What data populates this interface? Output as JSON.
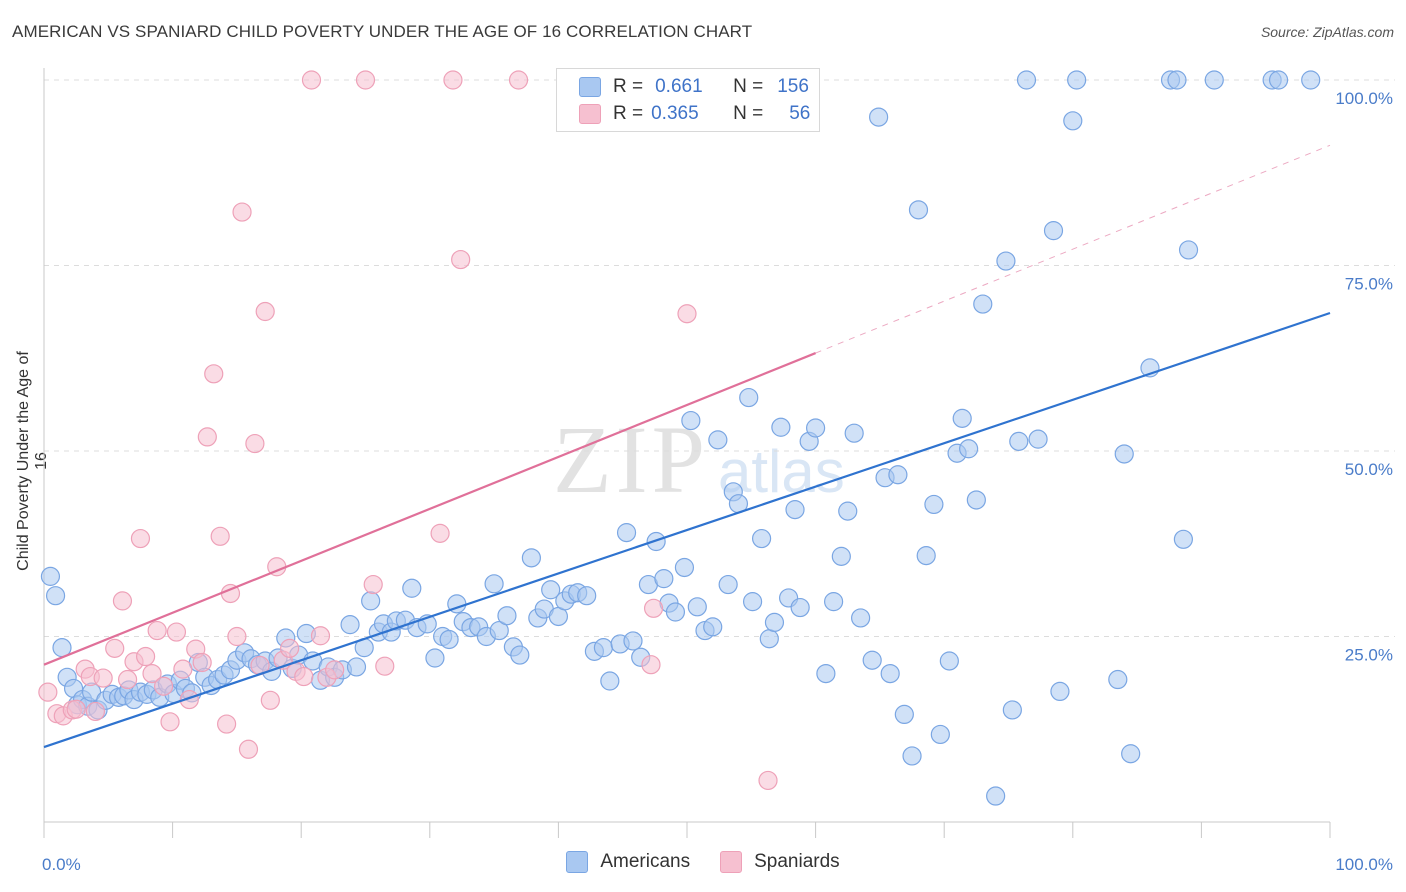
{
  "title": "AMERICAN VS SPANIARD CHILD POVERTY UNDER THE AGE OF 16 CORRELATION CHART",
  "source": "Source: ZipAtlas.com",
  "watermark": {
    "zip": "ZIP",
    "atlas": "atlas"
  },
  "colors": {
    "americans_fill": "#a9c8f1",
    "americans_stroke": "#7aa6e3",
    "americans_line": "#2f73cf",
    "spaniards_fill": "#f6c0d0",
    "spaniards_stroke": "#eea1b8",
    "spaniards_line": "#e07099",
    "tick_text": "#4a7cc9"
  },
  "legend": {
    "rows": [
      {
        "r_label": "R =",
        "r_value": "0.661",
        "n_label": "N =",
        "n_value": "156"
      },
      {
        "r_label": "R =",
        "r_value": "0.365",
        "n_label": "N =",
        "n_value": "56"
      }
    ]
  },
  "bottom_legend": [
    "Americans",
    "Spaniards"
  ],
  "chart_data": {
    "type": "scatter",
    "title": "AMERICAN VS SPANIARD CHILD POVERTY UNDER THE AGE OF 16 CORRELATION CHART",
    "xlabel": "",
    "ylabel": "Child Poverty Under the Age of 16",
    "xlim": [
      0,
      100
    ],
    "ylim": [
      0,
      100
    ],
    "x_tick_labels": [
      "0.0%",
      "100.0%"
    ],
    "y_ticks": [
      25,
      50,
      75,
      100
    ],
    "y_tick_labels": [
      "25.0%",
      "50.0%",
      "75.0%",
      "100.0%"
    ],
    "grid": "horizontal dashed",
    "legend_position": "top-center",
    "series": [
      {
        "name": "Americans",
        "R": 0.661,
        "N": 156,
        "trend": {
          "x": [
            0,
            100
          ],
          "y": [
            10.1,
            68.6
          ],
          "dashed_extension": false
        },
        "points": [
          [
            0.5,
            33.1
          ],
          [
            0.9,
            30.5
          ],
          [
            1.4,
            23.5
          ],
          [
            1.8,
            19.5
          ],
          [
            2.3,
            18.0
          ],
          [
            2.6,
            15.8
          ],
          [
            3.0,
            16.5
          ],
          [
            3.4,
            15.6
          ],
          [
            3.7,
            17.5
          ],
          [
            4.2,
            15.1
          ],
          [
            4.8,
            16.4
          ],
          [
            5.3,
            17.2
          ],
          [
            5.8,
            16.8
          ],
          [
            6.2,
            17.0
          ],
          [
            6.6,
            17.8
          ],
          [
            7.0,
            16.5
          ],
          [
            7.5,
            17.5
          ],
          [
            8.0,
            17.2
          ],
          [
            8.5,
            17.8
          ],
          [
            9.0,
            16.8
          ],
          [
            9.6,
            18.6
          ],
          [
            10.1,
            17.3
          ],
          [
            10.6,
            19.1
          ],
          [
            11.0,
            18.0
          ],
          [
            11.5,
            17.4
          ],
          [
            12.0,
            21.5
          ],
          [
            12.5,
            19.5
          ],
          [
            13.0,
            18.4
          ],
          [
            13.5,
            19.2
          ],
          [
            14.0,
            19.8
          ],
          [
            14.5,
            20.5
          ],
          [
            15.0,
            21.8
          ],
          [
            15.6,
            22.8
          ],
          [
            16.1,
            22.0
          ],
          [
            16.6,
            21.2
          ],
          [
            17.2,
            21.7
          ],
          [
            17.7,
            20.3
          ],
          [
            18.2,
            22.1
          ],
          [
            18.8,
            24.8
          ],
          [
            19.3,
            20.7
          ],
          [
            19.8,
            22.5
          ],
          [
            20.4,
            25.4
          ],
          [
            20.9,
            21.7
          ],
          [
            21.5,
            19.1
          ],
          [
            22.1,
            20.9
          ],
          [
            22.6,
            19.5
          ],
          [
            23.2,
            20.5
          ],
          [
            23.8,
            26.6
          ],
          [
            24.3,
            20.9
          ],
          [
            24.9,
            23.5
          ],
          [
            25.4,
            29.8
          ],
          [
            26.0,
            25.6
          ],
          [
            26.4,
            26.7
          ],
          [
            27.0,
            25.6
          ],
          [
            27.4,
            27.1
          ],
          [
            28.1,
            27.2
          ],
          [
            28.6,
            31.5
          ],
          [
            29.0,
            26.2
          ],
          [
            29.8,
            26.7
          ],
          [
            30.4,
            22.1
          ],
          [
            31.0,
            25.0
          ],
          [
            31.5,
            24.6
          ],
          [
            32.1,
            29.4
          ],
          [
            32.6,
            27.0
          ],
          [
            33.2,
            26.2
          ],
          [
            33.8,
            26.3
          ],
          [
            34.4,
            25.0
          ],
          [
            35.0,
            32.1
          ],
          [
            35.4,
            25.8
          ],
          [
            36.0,
            27.8
          ],
          [
            36.5,
            23.6
          ],
          [
            37.0,
            22.5
          ],
          [
            37.9,
            35.6
          ],
          [
            38.4,
            27.5
          ],
          [
            38.9,
            28.7
          ],
          [
            39.4,
            31.3
          ],
          [
            40.0,
            27.7
          ],
          [
            40.5,
            29.8
          ],
          [
            41.0,
            30.7
          ],
          [
            41.5,
            30.9
          ],
          [
            42.2,
            30.5
          ],
          [
            42.8,
            23.0
          ],
          [
            43.5,
            23.5
          ],
          [
            44.0,
            19.0
          ],
          [
            44.8,
            24.0
          ],
          [
            45.3,
            39.0
          ],
          [
            45.8,
            24.4
          ],
          [
            46.4,
            22.2
          ],
          [
            47.0,
            32.0
          ],
          [
            47.6,
            37.8
          ],
          [
            48.2,
            32.8
          ],
          [
            48.6,
            29.5
          ],
          [
            49.1,
            28.3
          ],
          [
            49.8,
            34.3
          ],
          [
            50.3,
            54.1
          ],
          [
            50.8,
            29.0
          ],
          [
            51.4,
            25.8
          ],
          [
            52.0,
            26.3
          ],
          [
            52.4,
            51.5
          ],
          [
            53.2,
            32.0
          ],
          [
            53.6,
            44.5
          ],
          [
            54.0,
            42.9
          ],
          [
            54.8,
            57.2
          ],
          [
            55.1,
            29.7
          ],
          [
            55.8,
            38.2
          ],
          [
            56.4,
            24.7
          ],
          [
            56.8,
            26.9
          ],
          [
            57.3,
            53.2
          ],
          [
            57.9,
            30.2
          ],
          [
            58.4,
            42.1
          ],
          [
            58.8,
            28.9
          ],
          [
            59.5,
            51.3
          ],
          [
            60.0,
            53.1
          ],
          [
            60.8,
            20.0
          ],
          [
            61.4,
            29.7
          ],
          [
            62.0,
            35.8
          ],
          [
            62.5,
            41.9
          ],
          [
            63.0,
            52.4
          ],
          [
            63.5,
            27.5
          ],
          [
            64.4,
            21.8
          ],
          [
            64.9,
            95.0
          ],
          [
            65.4,
            46.4
          ],
          [
            65.8,
            20.0
          ],
          [
            66.4,
            46.8
          ],
          [
            66.9,
            14.5
          ],
          [
            67.5,
            8.9
          ],
          [
            68.0,
            82.5
          ],
          [
            68.6,
            35.9
          ],
          [
            69.2,
            42.8
          ],
          [
            69.7,
            11.8
          ],
          [
            70.4,
            21.7
          ],
          [
            71.0,
            49.7
          ],
          [
            71.4,
            54.4
          ],
          [
            71.9,
            50.3
          ],
          [
            72.5,
            43.4
          ],
          [
            73.0,
            69.8
          ],
          [
            74.0,
            3.5
          ],
          [
            74.8,
            75.6
          ],
          [
            75.3,
            15.1
          ],
          [
            75.8,
            51.3
          ],
          [
            76.4,
            100.0
          ],
          [
            77.3,
            51.6
          ],
          [
            78.5,
            79.7
          ],
          [
            79.0,
            17.6
          ],
          [
            80.0,
            94.5
          ],
          [
            80.3,
            100.0
          ],
          [
            83.5,
            19.2
          ],
          [
            84.0,
            49.6
          ],
          [
            84.5,
            9.2
          ],
          [
            86.0,
            61.2
          ],
          [
            87.6,
            100.0
          ],
          [
            88.1,
            100.0
          ],
          [
            88.6,
            38.1
          ],
          [
            89.0,
            77.1
          ],
          [
            91.0,
            100.0
          ],
          [
            95.5,
            100.0
          ],
          [
            96.0,
            100.0
          ],
          [
            98.5,
            100.0
          ]
        ]
      },
      {
        "name": "Spaniards",
        "R": 0.365,
        "N": 56,
        "trend": {
          "x": [
            0,
            60
          ],
          "y": [
            21.2,
            63.2
          ],
          "dashed_extension": true
        },
        "points": [
          [
            0.3,
            17.5
          ],
          [
            1.0,
            14.6
          ],
          [
            1.5,
            14.3
          ],
          [
            2.2,
            15.1
          ],
          [
            2.5,
            15.2
          ],
          [
            3.2,
            20.6
          ],
          [
            3.6,
            19.6
          ],
          [
            4.0,
            14.9
          ],
          [
            4.6,
            19.4
          ],
          [
            5.5,
            23.4
          ],
          [
            6.1,
            29.8
          ],
          [
            6.5,
            19.2
          ],
          [
            7.0,
            21.6
          ],
          [
            7.5,
            38.2
          ],
          [
            7.9,
            22.3
          ],
          [
            8.4,
            20.0
          ],
          [
            8.8,
            25.8
          ],
          [
            9.3,
            18.3
          ],
          [
            9.8,
            13.5
          ],
          [
            10.3,
            25.6
          ],
          [
            10.8,
            20.6
          ],
          [
            11.3,
            16.5
          ],
          [
            11.8,
            23.3
          ],
          [
            12.3,
            21.5
          ],
          [
            12.7,
            51.9
          ],
          [
            13.2,
            60.4
          ],
          [
            13.7,
            38.5
          ],
          [
            14.2,
            13.2
          ],
          [
            14.5,
            30.8
          ],
          [
            15.0,
            25.0
          ],
          [
            15.4,
            82.2
          ],
          [
            15.9,
            9.8
          ],
          [
            16.4,
            51.0
          ],
          [
            16.8,
            21.1
          ],
          [
            17.2,
            68.8
          ],
          [
            17.6,
            16.4
          ],
          [
            18.1,
            34.4
          ],
          [
            18.6,
            21.8
          ],
          [
            19.1,
            23.4
          ],
          [
            19.6,
            20.3
          ],
          [
            20.2,
            19.6
          ],
          [
            20.8,
            100.0
          ],
          [
            21.5,
            25.1
          ],
          [
            22.0,
            19.5
          ],
          [
            22.6,
            20.5
          ],
          [
            25.0,
            100.0
          ],
          [
            25.6,
            32.0
          ],
          [
            26.5,
            21.0
          ],
          [
            30.8,
            38.9
          ],
          [
            32.4,
            75.8
          ],
          [
            31.8,
            100.0
          ],
          [
            36.9,
            100.0
          ],
          [
            47.4,
            28.8
          ],
          [
            47.2,
            21.2
          ],
          [
            50.0,
            68.5
          ],
          [
            56.3,
            5.6
          ]
        ]
      }
    ]
  }
}
